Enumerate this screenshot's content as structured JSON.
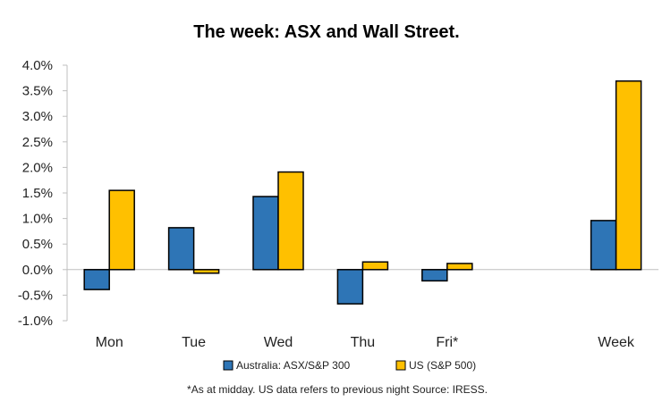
{
  "chart_data": {
    "type": "bar",
    "title": "The week:  ASX and Wall Street.",
    "categories": [
      "Mon",
      "Tue",
      "Wed",
      "Thu",
      "Fri*",
      "",
      "Week"
    ],
    "series": [
      {
        "name": "Australia: ASX/S&P 300",
        "color": "#2e75b6",
        "values": [
          -0.39,
          0.82,
          1.43,
          -0.67,
          -0.22,
          null,
          0.96
        ]
      },
      {
        "name": "US (S&P 500)",
        "color": "#ffc000",
        "values": [
          1.55,
          -0.07,
          1.91,
          0.15,
          0.12,
          null,
          3.69
        ]
      }
    ],
    "ylim": [
      -1.0,
      4.0
    ],
    "yticks": [
      4.0,
      3.5,
      3.0,
      2.5,
      2.0,
      1.5,
      1.0,
      0.5,
      0.0,
      -0.5,
      -1.0
    ],
    "ytick_labels": [
      "4.0%",
      "3.5%",
      "3.0%",
      "2.5%",
      "2.0%",
      "1.5%",
      "1.0%",
      "0.5%",
      "0.0%",
      "-0.5%",
      "-1.0%"
    ],
    "xlabel": "",
    "ylabel": "",
    "grid": false,
    "legend_position": "bottom",
    "note": "*As at midday. US data refers to previous night  Source:  IRESS."
  }
}
